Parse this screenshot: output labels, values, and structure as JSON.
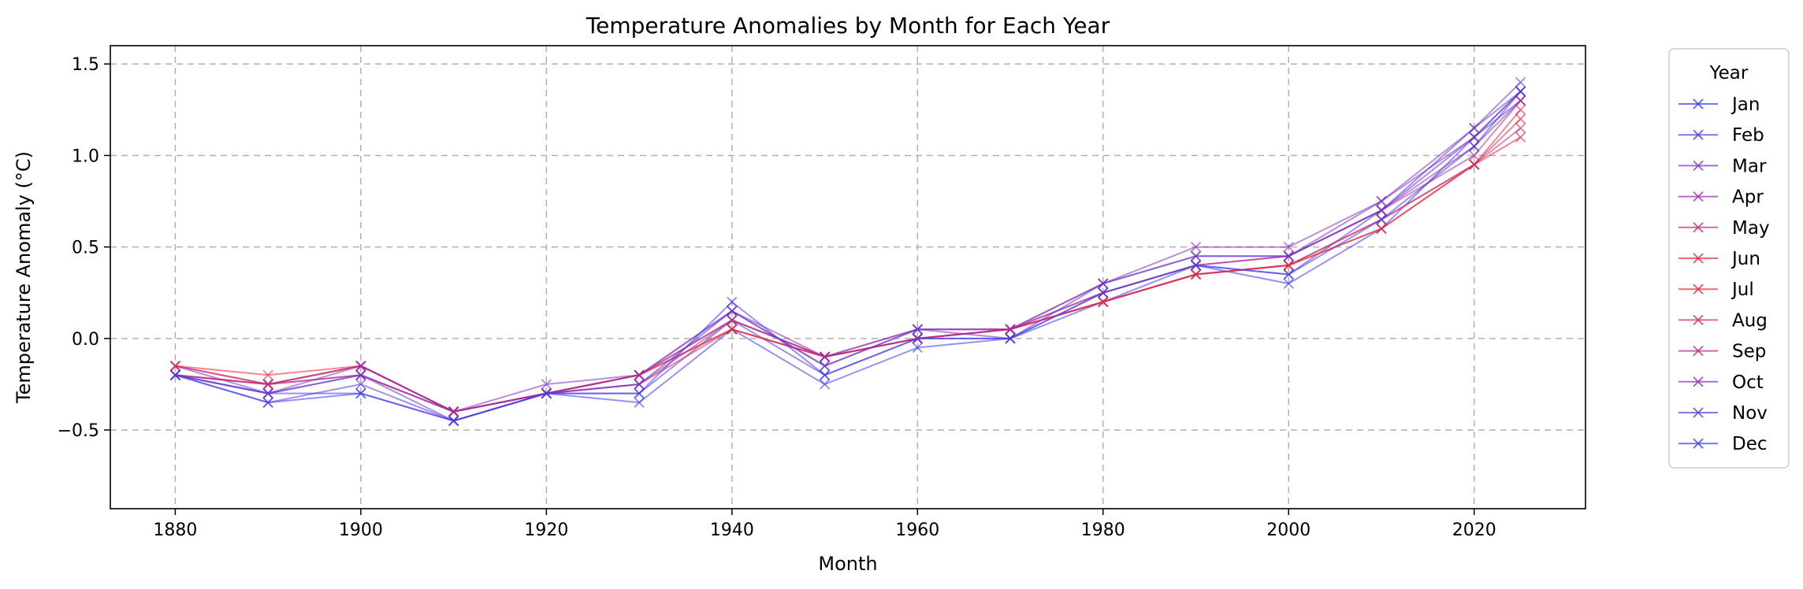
{
  "chart_data": {
    "type": "line",
    "title": "Temperature Anomalies by Month for Each Year",
    "xlabel": "Month",
    "ylabel": "Temperature Anomaly (°C)",
    "xlim": [
      1873,
      2032
    ],
    "ylim": [
      -0.93,
      1.6
    ],
    "xticks": [
      1880,
      1900,
      1920,
      1940,
      1960,
      1980,
      2000,
      2020
    ],
    "yticks": [
      -0.5,
      0.0,
      0.5,
      1.0,
      1.5
    ],
    "grid": true,
    "marker": "x",
    "legend": {
      "title": "Year",
      "placement": "outside-right"
    },
    "x_decades": [
      1880,
      1890,
      1900,
      1910,
      1920,
      1930,
      1940,
      1950,
      1960,
      1970,
      1980,
      1990,
      2000,
      2010,
      2020,
      2025
    ],
    "series": [
      {
        "name": "Jan",
        "color": "#3a3af0",
        "x": [
          1880,
          1890,
          1900,
          1910,
          1920,
          1930,
          1940,
          1950,
          1960,
          1970,
          1980,
          1990,
          2000,
          2010,
          2020,
          2025
        ],
        "values": [
          -0.2,
          -0.3,
          -0.3,
          -0.45,
          -0.3,
          -0.35,
          0.05,
          -0.25,
          -0.05,
          0.0,
          0.2,
          0.4,
          0.3,
          0.6,
          1.1,
          1.3
        ]
      },
      {
        "name": "Feb",
        "color": "#5536e0",
        "x": [
          1880,
          1890,
          1900,
          1910,
          1920,
          1930,
          1940,
          1950,
          1960,
          1970,
          1980,
          1990,
          2000,
          2010,
          2020,
          2025
        ],
        "values": [
          -0.2,
          -0.35,
          -0.25,
          -0.45,
          -0.3,
          -0.3,
          0.1,
          -0.2,
          0.0,
          0.0,
          0.25,
          0.4,
          0.35,
          0.7,
          1.15,
          1.35
        ]
      },
      {
        "name": "Mar",
        "color": "#7a33c8",
        "x": [
          1880,
          1890,
          1900,
          1910,
          1920,
          1930,
          1940,
          1950,
          1960,
          1970,
          1980,
          1990,
          2000,
          2010,
          2020,
          2025
        ],
        "values": [
          -0.15,
          -0.3,
          -0.2,
          -0.4,
          -0.25,
          -0.2,
          0.15,
          -0.15,
          0.05,
          0.05,
          0.3,
          0.45,
          0.45,
          0.75,
          1.15,
          1.4
        ]
      },
      {
        "name": "Apr",
        "color": "#9a30aa",
        "x": [
          1880,
          1890,
          1900,
          1910,
          1920,
          1930,
          1940,
          1950,
          1960,
          1970,
          1980,
          1990,
          2000,
          2010,
          2020,
          2025
        ],
        "values": [
          -0.2,
          -0.25,
          -0.2,
          -0.4,
          -0.3,
          -0.2,
          0.1,
          -0.1,
          0.05,
          0.05,
          0.25,
          0.4,
          0.45,
          0.7,
          1.05,
          1.3
        ]
      },
      {
        "name": "May",
        "color": "#c02c7c",
        "x": [
          1880,
          1890,
          1900,
          1910,
          1920,
          1930,
          1940,
          1950,
          1960,
          1970,
          1980,
          1990,
          2000,
          2010,
          2020,
          2025
        ],
        "values": [
          -0.15,
          -0.25,
          -0.2,
          -0.4,
          -0.3,
          -0.2,
          0.1,
          -0.1,
          0.0,
          0.05,
          0.2,
          0.35,
          0.4,
          0.65,
          0.95,
          1.15
        ]
      },
      {
        "name": "Jun",
        "color": "#e02840",
        "x": [
          1880,
          1890,
          1900,
          1910,
          1920,
          1930,
          1940,
          1950,
          1960,
          1970,
          1980,
          1990,
          2000,
          2010,
          2020,
          2025
        ],
        "values": [
          -0.2,
          -0.25,
          -0.15,
          -0.4,
          -0.3,
          -0.2,
          0.05,
          -0.1,
          0.0,
          0.05,
          0.2,
          0.35,
          0.4,
          0.6,
          0.95,
          1.1
        ]
      },
      {
        "name": "Jul",
        "color": "#e82838",
        "x": [
          1880,
          1890,
          1900,
          1910,
          1920,
          1930,
          1940,
          1950,
          1960,
          1970,
          1980,
          1990,
          2000,
          2010,
          2020,
          2025
        ],
        "values": [
          -0.15,
          -0.2,
          -0.15,
          -0.4,
          -0.3,
          -0.2,
          0.05,
          -0.1,
          0.0,
          0.05,
          0.2,
          0.35,
          0.4,
          0.6,
          0.95,
          1.2
        ]
      },
      {
        "name": "Aug",
        "color": "#d8285a",
        "x": [
          1880,
          1890,
          1900,
          1910,
          1920,
          1930,
          1940,
          1950,
          1960,
          1970,
          1980,
          1990,
          2000,
          2010,
          2020,
          2025
        ],
        "values": [
          -0.15,
          -0.25,
          -0.15,
          -0.4,
          -0.3,
          -0.25,
          0.05,
          -0.1,
          0.0,
          0.05,
          0.2,
          0.35,
          0.4,
          0.65,
          0.95,
          1.25
        ]
      },
      {
        "name": "Sep",
        "color": "#b02c88",
        "x": [
          1880,
          1890,
          1900,
          1910,
          1920,
          1930,
          1940,
          1950,
          1960,
          1970,
          1980,
          1990,
          2000,
          2010,
          2020,
          2025
        ],
        "values": [
          -0.2,
          -0.25,
          -0.15,
          -0.4,
          -0.3,
          -0.25,
          0.1,
          -0.1,
          0.0,
          0.05,
          0.25,
          0.4,
          0.45,
          0.7,
          1.0,
          1.3
        ]
      },
      {
        "name": "Oct",
        "color": "#8c30b8",
        "x": [
          1880,
          1890,
          1900,
          1910,
          1920,
          1930,
          1940,
          1950,
          1960,
          1970,
          1980,
          1990,
          2000,
          2010,
          2020,
          2025
        ],
        "values": [
          -0.2,
          -0.3,
          -0.15,
          -0.4,
          -0.3,
          -0.2,
          0.15,
          -0.1,
          0.05,
          0.05,
          0.3,
          0.5,
          0.5,
          0.75,
          1.1,
          1.35
        ]
      },
      {
        "name": "Nov",
        "color": "#6034d8",
        "x": [
          1880,
          1890,
          1900,
          1910,
          1920,
          1930,
          1940,
          1950,
          1960,
          1970,
          1980,
          1990,
          2000,
          2010,
          2020,
          2025
        ],
        "values": [
          -0.2,
          -0.3,
          -0.2,
          -0.45,
          -0.3,
          -0.25,
          0.15,
          -0.15,
          0.05,
          0.0,
          0.3,
          0.45,
          0.45,
          0.7,
          1.1,
          1.35
        ]
      },
      {
        "name": "Dec",
        "color": "#3c3af0",
        "x": [
          1880,
          1890,
          1900,
          1910,
          1920,
          1930,
          1940,
          1950,
          1960,
          1970,
          1980,
          1990,
          2000,
          2010,
          2020,
          2025
        ],
        "values": [
          -0.2,
          -0.35,
          -0.3,
          -0.45,
          -0.3,
          -0.3,
          0.2,
          -0.2,
          0.0,
          0.0,
          0.25,
          0.4,
          0.35,
          0.65,
          1.05,
          1.35
        ]
      }
    ]
  }
}
